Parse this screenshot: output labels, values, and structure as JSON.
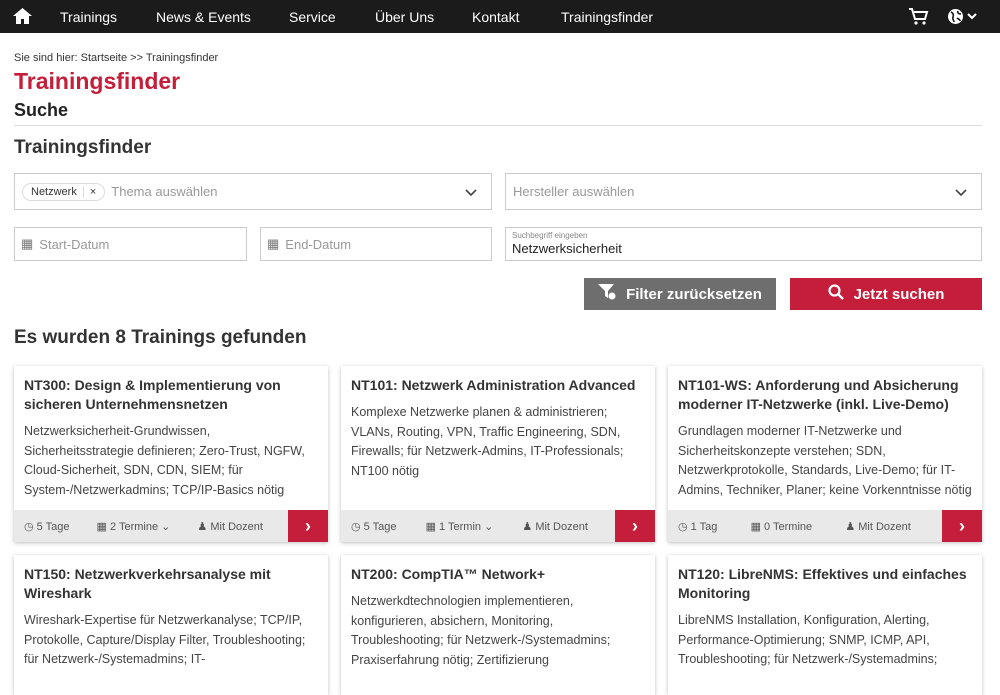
{
  "nav": {
    "items": [
      "Trainings",
      "News & Events",
      "Service",
      "Über Uns",
      "Kontakt",
      "Trainingsfinder"
    ]
  },
  "breadcrumb": "Sie sind hier: Startseite >> Trainingsfinder",
  "title": "Trainingsfinder",
  "subtitle": "Suche",
  "section_title": "Trainingsfinder",
  "filters": {
    "topic_chip": "Netzwerk",
    "topic_placeholder": "Thema auswählen",
    "vendor_placeholder": "Hersteller auswählen",
    "start_placeholder": "Start-Datum",
    "end_placeholder": "End-Datum",
    "search_label": "Suchbegriff eingeben",
    "search_value": "Netzwerksicherheit",
    "reset_label": "Filter zurücksetzen",
    "search_button": "Jetzt suchen"
  },
  "results_heading": "Es wurden 8 Trainings gefunden",
  "colors": {
    "accent": "#c41e3a",
    "nav": "#1b1b1b",
    "reset": "#6e6e6e"
  },
  "cards": [
    {
      "title": "NT300: Design & Implementierung von sicheren Unternehmensnetzen",
      "desc": "Netzwerksicherheit-Grundwissen, Sicherheitsstrategie definieren; Zero-Trust, NGFW, Cloud-Sicherheit, SDN, CDN, SIEM; für System-/Netzwerkadmins; TCP/IP-Basics nötig",
      "duration": "5 Tage",
      "dates": "2 Termine",
      "trainer": "Mit Dozent"
    },
    {
      "title": "NT101: Netzwerk Administration Advanced",
      "desc": "Komplexe Netzwerke planen & administrieren; VLANs, Routing, VPN, Traffic Engineering, SDN, Firewalls; für Netzwerk-Admins, IT-Professionals; NT100 nötig",
      "duration": "5 Tage",
      "dates": "1 Termin",
      "trainer": "Mit Dozent"
    },
    {
      "title": "NT101-WS: Anforderung und Absicherung moderner IT-Netzwerke (inkl. Live-Demo)",
      "desc": "Grundlagen moderner IT-Netzwerke und Sicherheitskonzepte verstehen; SDN, Netzwerkprotokolle, Standards, Live-Demo; für IT-Admins, Techniker, Planer; keine Vorkenntnisse nötig",
      "duration": "1 Tag",
      "dates": "0 Termine",
      "trainer": "Mit Dozent"
    },
    {
      "title": "NT150: Netzwerkverkehrsanalyse mit Wireshark",
      "desc": "Wireshark-Expertise für Netzwerkanalyse; TCP/IP, Protokolle, Capture/Display Filter, Troubleshooting; für Netzwerk-/Systemadmins; IT-"
    },
    {
      "title": "NT200: CompTIA™ Network+",
      "desc": "Netzwerkdtechnologien implementieren, konfigurieren, absichern, Monitoring, Troubleshooting; für Netzwerk-/Systemadmins; Praxiserfahrung nötig; Zertifizierung"
    },
    {
      "title": "NT120: LibreNMS: Effektives und einfaches Monitoring",
      "desc": "LibreNMS Installation, Konfiguration, Alerting, Performance-Optimierung; SNMP, ICMP, API, Troubleshooting; für Netzwerk-/Systemadmins;"
    }
  ]
}
